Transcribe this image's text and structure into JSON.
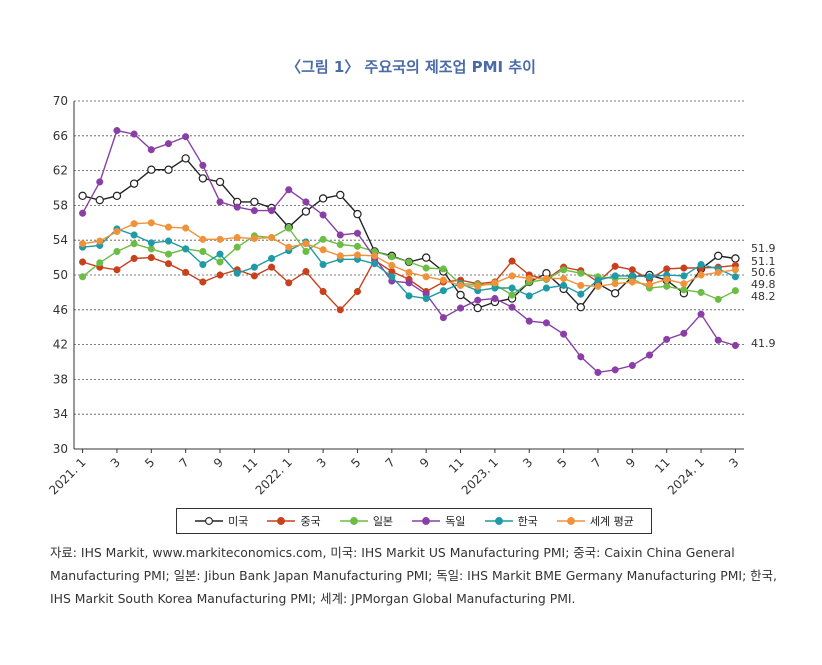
{
  "title": "〈그림 1〉 주요국의 제조업 PMI 추이",
  "source": "자료: IHS Markit, www.markiteconomics.com, 미국: IHS Markit US Manufacturing PMI; 중국: Caixin China General Manufacturing PMI; 일본: Jibun Bank Japan Manufacturing PMI; 독일: IHS Markit BME Germany Manufacturing PMI; 한국, IHS Markit South Korea Manufacturing PMI; 세계: JPMorgan Global Manufacturing PMI.",
  "chart_data": {
    "type": "line",
    "ylim": [
      30,
      70
    ],
    "yticks": [
      "70",
      "66",
      "62",
      "58",
      "54",
      "50",
      "46",
      "42",
      "38",
      "34",
      "30"
    ],
    "x_tick_labels": [
      "2021. 1",
      "3",
      "5",
      "7",
      "9",
      "11",
      "2022. 1",
      "3",
      "5",
      "7",
      "9",
      "11",
      "2023. 1",
      "3",
      "5",
      "7",
      "9",
      "11",
      "2024. 1",
      "3"
    ],
    "end_labels": [
      "51.9",
      "51.1",
      "50.6",
      "49.8",
      "48.2",
      "41.9"
    ],
    "series": [
      {
        "name": "미국",
        "color": "#222222",
        "marker": "open",
        "values": [
          59.1,
          58.6,
          59.1,
          60.5,
          62.1,
          62.1,
          63.4,
          61.1,
          60.7,
          58.4,
          58.4,
          57.7,
          55.5,
          57.3,
          58.8,
          59.2,
          57.0,
          52.7,
          52.2,
          51.5,
          52.0,
          50.4,
          47.7,
          46.2,
          46.9,
          47.3,
          49.2,
          50.2,
          48.4,
          46.3,
          49.0,
          47.9,
          49.8,
          50.0,
          49.4,
          47.9,
          50.7,
          52.2,
          51.9
        ]
      },
      {
        "name": "중국",
        "color": "#c8401c",
        "marker": "filled",
        "values": [
          51.5,
          50.9,
          50.6,
          51.9,
          52.0,
          51.3,
          50.3,
          49.2,
          50.0,
          50.6,
          49.9,
          50.9,
          49.1,
          50.4,
          48.1,
          46.0,
          48.1,
          51.7,
          50.4,
          49.5,
          48.1,
          49.2,
          49.4,
          49.0,
          49.2,
          51.6,
          50.0,
          49.5,
          50.9,
          50.5,
          49.2,
          51.0,
          50.6,
          49.5,
          50.7,
          50.8,
          50.8,
          50.9,
          51.1
        ]
      },
      {
        "name": "일본",
        "color": "#6cbd45",
        "marker": "filled",
        "values": [
          49.8,
          51.4,
          52.7,
          53.6,
          53.0,
          52.4,
          53.0,
          52.7,
          51.5,
          53.2,
          54.5,
          54.3,
          55.4,
          52.7,
          54.1,
          53.5,
          53.3,
          52.7,
          52.1,
          51.5,
          50.8,
          50.7,
          49.0,
          48.9,
          48.9,
          47.7,
          49.2,
          49.5,
          50.6,
          50.2,
          49.8,
          49.6,
          49.6,
          48.5,
          48.7,
          48.3,
          48.0,
          47.2,
          48.2
        ]
      },
      {
        "name": "독일",
        "color": "#8a3fa6",
        "marker": "filled",
        "values": [
          57.1,
          60.7,
          66.6,
          66.2,
          64.4,
          65.1,
          65.9,
          62.6,
          58.4,
          57.8,
          57.4,
          57.4,
          59.8,
          58.4,
          56.9,
          54.6,
          54.8,
          52.0,
          49.3,
          49.1,
          47.8,
          45.1,
          46.2,
          47.1,
          47.3,
          46.3,
          44.7,
          44.5,
          43.2,
          40.6,
          38.8,
          39.1,
          39.6,
          40.8,
          42.6,
          43.3,
          45.5,
          42.5,
          41.9
        ]
      },
      {
        "name": "한국",
        "color": "#1f9aa6",
        "marker": "filled",
        "values": [
          53.2,
          53.4,
          55.3,
          54.6,
          53.7,
          53.9,
          53.0,
          51.2,
          52.4,
          50.2,
          50.9,
          51.9,
          52.8,
          53.8,
          51.2,
          51.8,
          51.8,
          51.3,
          49.8,
          47.6,
          47.3,
          48.2,
          49.0,
          48.2,
          48.5,
          48.5,
          47.6,
          48.5,
          48.8,
          47.8,
          49.4,
          49.9,
          49.9,
          49.8,
          50.0,
          49.9,
          51.2,
          50.7,
          49.8
        ]
      },
      {
        "name": "세계 평균",
        "color": "#f0923a",
        "marker": "filled",
        "values": [
          53.6,
          53.9,
          55.0,
          55.9,
          56.0,
          55.5,
          55.4,
          54.1,
          54.1,
          54.3,
          54.2,
          54.3,
          53.2,
          53.6,
          52.9,
          52.2,
          52.3,
          52.2,
          51.1,
          50.3,
          49.8,
          49.4,
          48.8,
          48.7,
          49.1,
          49.9,
          49.6,
          49.6,
          49.6,
          48.8,
          48.7,
          49.0,
          49.2,
          48.9,
          49.5,
          49.0,
          50.0,
          50.3,
          50.6
        ]
      }
    ]
  }
}
